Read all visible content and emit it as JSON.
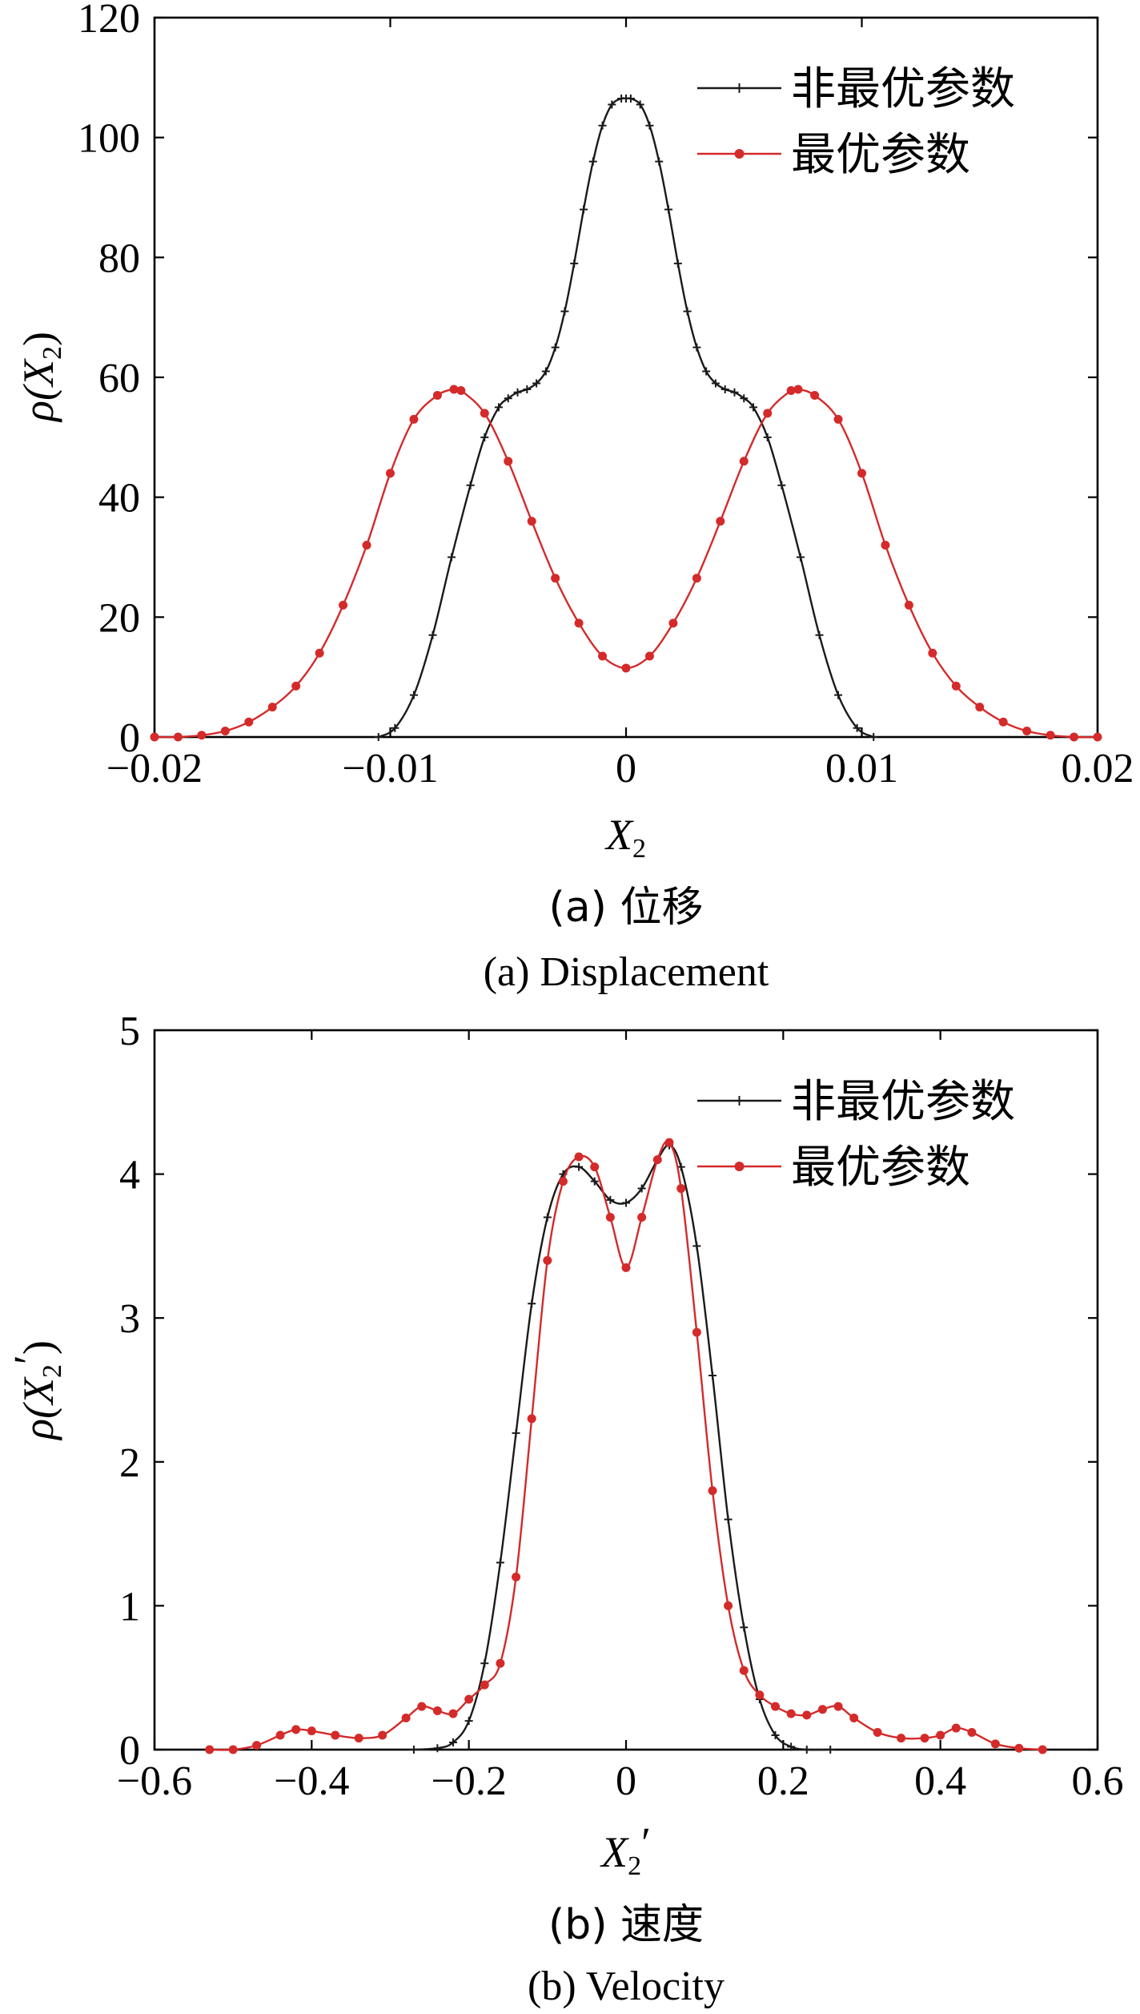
{
  "chart_data": [
    {
      "id": "a",
      "type": "line",
      "caption_cn": "(a)  位移",
      "caption_en": "(a)  Displacement",
      "xlabel": "X",
      "xlabel_sub": "2",
      "ylabel": "ρ(X",
      "ylabel_sub": "2",
      "ylabel_tail": ")",
      "xlim": [
        -0.02,
        0.02
      ],
      "ylim": [
        0,
        120
      ],
      "xticks": [
        -0.02,
        -0.01,
        0,
        0.01,
        0.02
      ],
      "xtick_labels": [
        "−0.02",
        "−0.01",
        "0",
        "0.01",
        "0.02"
      ],
      "yticks": [
        0,
        20,
        40,
        60,
        80,
        100,
        120
      ],
      "ytick_labels": [
        "0",
        "20",
        "40",
        "60",
        "80",
        "100",
        "120"
      ],
      "legend_position": "top-right",
      "series": [
        {
          "name": "非最优参数",
          "color": "#1a1a1a",
          "marker": "plus",
          "x": [
            -0.0105,
            -0.0098,
            -0.009,
            -0.0082,
            -0.0074,
            -0.0066,
            -0.006,
            -0.0054,
            -0.005,
            -0.0046,
            -0.0042,
            -0.0038,
            -0.0034,
            -0.003,
            -0.0026,
            -0.0022,
            -0.0018,
            -0.0014,
            -0.001,
            -0.0006,
            -0.0002,
            0,
            0.0002,
            0.0006,
            0.001,
            0.0014,
            0.0018,
            0.0022,
            0.0026,
            0.003,
            0.0034,
            0.0038,
            0.0042,
            0.0046,
            0.005,
            0.0054,
            0.006,
            0.0066,
            0.0074,
            0.0082,
            0.009,
            0.0098,
            0.0105
          ],
          "y": [
            0,
            1.5,
            7,
            17,
            30,
            42,
            50,
            55,
            56.5,
            57.5,
            58,
            59,
            61,
            65,
            71,
            79,
            88,
            96,
            102,
            105.5,
            106.5,
            106.5,
            106.5,
            105.5,
            102,
            96,
            88,
            79,
            71,
            65,
            61,
            59,
            58,
            57.5,
            56.5,
            55,
            50,
            42,
            30,
            17,
            7,
            1.5,
            0
          ]
        },
        {
          "name": "最优参数",
          "color": "#d42a2a",
          "marker": "dot",
          "x": [
            -0.02,
            -0.019,
            -0.018,
            -0.017,
            -0.016,
            -0.015,
            -0.014,
            -0.013,
            -0.012,
            -0.011,
            -0.01,
            -0.009,
            -0.008,
            -0.0073,
            -0.007,
            -0.006,
            -0.005,
            -0.004,
            -0.003,
            -0.002,
            -0.001,
            0,
            0.001,
            0.002,
            0.003,
            0.004,
            0.005,
            0.006,
            0.007,
            0.0073,
            0.008,
            0.009,
            0.01,
            0.011,
            0.012,
            0.013,
            0.014,
            0.015,
            0.016,
            0.017,
            0.018,
            0.019,
            0.02
          ],
          "y": [
            0,
            0,
            0.3,
            1,
            2.5,
            5,
            8.5,
            14,
            22,
            32,
            44,
            53,
            57,
            58,
            57.8,
            54,
            46,
            36,
            26.5,
            19,
            13.5,
            11.5,
            13.5,
            19,
            26.5,
            36,
            46,
            54,
            57.8,
            58,
            57,
            53,
            44,
            32,
            22,
            14,
            8.5,
            5,
            2.5,
            1,
            0.3,
            0,
            0
          ]
        }
      ]
    },
    {
      "id": "b",
      "type": "line",
      "caption_cn": "(b)  速度",
      "caption_en": "(b)  Velocity",
      "xlabel": "X",
      "xlabel_sub": "2",
      "xlabel_prime": "′",
      "ylabel": "ρ(X",
      "ylabel_sub": "2",
      "ylabel_prime": "′",
      "ylabel_tail": ")",
      "xlim": [
        -0.6,
        0.6
      ],
      "ylim": [
        0,
        5
      ],
      "xticks": [
        -0.6,
        -0.4,
        -0.2,
        0,
        0.2,
        0.4,
        0.6
      ],
      "xtick_labels": [
        "−0.6",
        "−0.4",
        "−0.2",
        "0",
        "0.2",
        "0.4",
        "0.6"
      ],
      "yticks": [
        0,
        1,
        2,
        3,
        4,
        5
      ],
      "ytick_labels": [
        "0",
        "1",
        "2",
        "3",
        "4",
        "5"
      ],
      "legend_position": "top-right",
      "series": [
        {
          "name": "非最优参数",
          "color": "#1a1a1a",
          "marker": "plus",
          "x": [
            -0.27,
            -0.24,
            -0.22,
            -0.2,
            -0.18,
            -0.16,
            -0.14,
            -0.12,
            -0.1,
            -0.08,
            -0.06,
            -0.04,
            -0.02,
            0,
            0.02,
            0.04,
            0.055,
            0.07,
            0.09,
            0.11,
            0.13,
            0.15,
            0.17,
            0.19,
            0.21,
            0.23,
            0.26
          ],
          "y": [
            0,
            0.01,
            0.05,
            0.2,
            0.6,
            1.3,
            2.2,
            3.1,
            3.7,
            4.0,
            4.05,
            3.95,
            3.82,
            3.8,
            3.9,
            4.1,
            4.2,
            4.05,
            3.5,
            2.6,
            1.6,
            0.85,
            0.35,
            0.1,
            0.02,
            0,
            0
          ]
        },
        {
          "name": "最优参数",
          "color": "#d42a2a",
          "marker": "dot",
          "x": [
            -0.53,
            -0.5,
            -0.47,
            -0.44,
            -0.42,
            -0.4,
            -0.37,
            -0.34,
            -0.31,
            -0.28,
            -0.26,
            -0.24,
            -0.22,
            -0.2,
            -0.18,
            -0.16,
            -0.14,
            -0.12,
            -0.1,
            -0.08,
            -0.06,
            -0.04,
            -0.02,
            0,
            0.02,
            0.04,
            0.055,
            0.07,
            0.09,
            0.11,
            0.13,
            0.15,
            0.17,
            0.19,
            0.21,
            0.23,
            0.25,
            0.27,
            0.29,
            0.32,
            0.35,
            0.38,
            0.4,
            0.42,
            0.44,
            0.47,
            0.5,
            0.53
          ],
          "y": [
            0,
            0,
            0.03,
            0.1,
            0.14,
            0.13,
            0.1,
            0.08,
            0.1,
            0.22,
            0.3,
            0.27,
            0.25,
            0.35,
            0.45,
            0.6,
            1.2,
            2.3,
            3.4,
            3.95,
            4.12,
            4.05,
            3.7,
            3.35,
            3.7,
            4.1,
            4.22,
            3.9,
            2.9,
            1.8,
            1.0,
            0.55,
            0.38,
            0.3,
            0.25,
            0.24,
            0.28,
            0.3,
            0.22,
            0.12,
            0.08,
            0.08,
            0.1,
            0.15,
            0.12,
            0.04,
            0.01,
            0
          ]
        }
      ]
    }
  ]
}
